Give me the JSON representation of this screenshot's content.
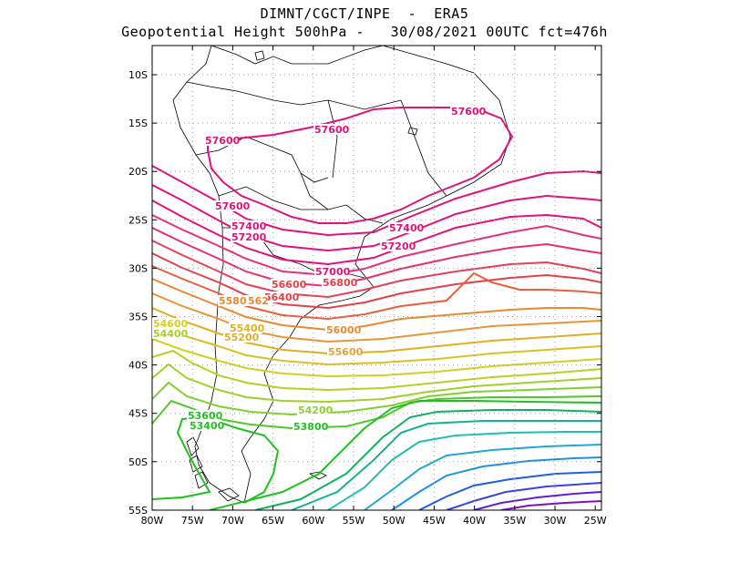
{
  "title_line1": "DIMNT/CGCT/INPE  -  ERA5",
  "title_line2": "Geopotential Height 500hPa -   30/08/2021 00UTC fct=476h",
  "lat_ticks": [
    "10S",
    "15S",
    "20S",
    "25S",
    "30S",
    "35S",
    "40S",
    "45S",
    "50S",
    "55S"
  ],
  "lon_ticks": [
    "80W",
    "75W",
    "70W",
    "65W",
    "60W",
    "55W",
    "50W",
    "45W",
    "40W",
    "35W",
    "30W",
    "25W"
  ],
  "contour_labels": [
    {
      "text": "57600",
      "color": "#e0127c"
    },
    {
      "text": "57600",
      "color": "#e0127c"
    },
    {
      "text": "57600",
      "color": "#e0127c"
    },
    {
      "text": "57600",
      "color": "#e0127c"
    },
    {
      "text": "57400",
      "color": "#e0127c"
    },
    {
      "text": "57400",
      "color": "#e0127c"
    },
    {
      "text": "57200",
      "color": "#e0127c"
    },
    {
      "text": "57200",
      "color": "#e0127c"
    },
    {
      "text": "57000",
      "color": "#e0127c"
    },
    {
      "text": "56800",
      "color": "#e4404a"
    },
    {
      "text": "56600",
      "color": "#e4404a"
    },
    {
      "text": "56400",
      "color": "#e4404a"
    },
    {
      "text": "55800",
      "color": "#e88a30"
    },
    {
      "text": "562",
      "color": "#e88a30"
    },
    {
      "text": "56000",
      "color": "#e88a30"
    },
    {
      "text": "55600",
      "color": "#eba03a"
    },
    {
      "text": "55400",
      "color": "#e0b020"
    },
    {
      "text": "55200",
      "color": "#e0b020"
    },
    {
      "text": "54600",
      "color": "#d8d020"
    },
    {
      "text": "54400",
      "color": "#a8d020"
    },
    {
      "text": "54200",
      "color": "#8ed030"
    },
    {
      "text": "53600",
      "color": "#20c020"
    },
    {
      "text": "53400",
      "color": "#20c020"
    },
    {
      "text": "53800",
      "color": "#20c020"
    }
  ],
  "colors": {
    "magenta": "#e0127c",
    "red": "#e4404a",
    "orange": "#e88a30",
    "yellow": "#e0b020",
    "green": "#20c020",
    "cyan": "#20c0b0",
    "blue": "#2060e0",
    "purple": "#8010c0",
    "grid": "#a0a0a0"
  }
}
